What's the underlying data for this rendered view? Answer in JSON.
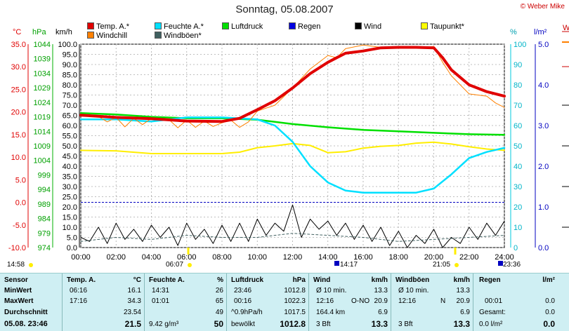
{
  "title": "Sonntag, 05.08.2007",
  "copyright": "© Weber Mike",
  "legend": [
    {
      "label": "Temp. A.*",
      "color": "#e00000"
    },
    {
      "label": "Feuchte A.*",
      "color": "#00e0ff"
    },
    {
      "label": "Luftdruck",
      "color": "#00e000"
    },
    {
      "label": "Regen",
      "color": "#0000e0"
    },
    {
      "label": "Wind",
      "color": "#000000"
    },
    {
      "label": "Taupunkt*",
      "color": "#ffff00"
    },
    {
      "label": "Windchill",
      "color": "#ff8000"
    },
    {
      "label": "Windböen*",
      "color": "#406060"
    }
  ],
  "axis_units": {
    "temp": "°C",
    "pressure": "hPa",
    "wind": "km/h",
    "humidity": "%",
    "rain": "l/m²",
    "cut": "W"
  },
  "sun": {
    "rise_left": "14:58",
    "rise": "06:07",
    "set": "21:05",
    "moon_a": "14:17",
    "moon_b": "23:36"
  },
  "chart_data": {
    "type": "line",
    "x_ticks": [
      "00:00",
      "02:00",
      "04:00",
      "06:00",
      "08:00",
      "10:00",
      "12:00",
      "14:00",
      "16:00",
      "18:00",
      "20:00",
      "22:00",
      "24:00"
    ],
    "axes": {
      "temp": {
        "ticks": [
          "35.0",
          "30.0",
          "25.0",
          "20.0",
          "15.0",
          "10.0",
          "5.0",
          "0.0",
          "-5.0",
          "-10.0"
        ],
        "range": [
          -10,
          35
        ],
        "color": "#e00000"
      },
      "pressure": {
        "ticks": [
          "1044",
          "1039",
          "1034",
          "1029",
          "1024",
          "1019",
          "1014",
          "1009",
          "1004",
          "999",
          "994",
          "989",
          "984",
          "979",
          "974"
        ],
        "range": [
          974,
          1044
        ],
        "color": "#00a000"
      },
      "wind": {
        "ticks": [
          "100.0",
          "95.0",
          "90.0",
          "85.0",
          "80.0",
          "75.0",
          "70.0",
          "65.0",
          "60.0",
          "55.0",
          "50.0",
          "45.0",
          "40.0",
          "35.0",
          "30.0",
          "25.0",
          "20.0",
          "15.0",
          "10.0",
          "5.0",
          "0.0"
        ],
        "range": [
          0,
          100
        ],
        "color": "#000000"
      },
      "humidity": {
        "ticks": [
          "100",
          "90",
          "80",
          "70",
          "60",
          "50",
          "40",
          "30",
          "20",
          "10",
          "0"
        ],
        "range": [
          0,
          100
        ],
        "color": "#00c8dc"
      },
      "rain": {
        "ticks": [
          "5.0",
          "4.0",
          "3.0",
          "2.0",
          "1.0",
          "0.0"
        ],
        "range": [
          0,
          5
        ],
        "color": "#0000c0"
      }
    },
    "series": [
      {
        "name": "Temp. A.*",
        "axis": "temp",
        "x": [
          0,
          2,
          4,
          6,
          8,
          9,
          10,
          11,
          12,
          13,
          14,
          14.5,
          15,
          16,
          17,
          18,
          19,
          20,
          20.5,
          21,
          22,
          23,
          24
        ],
        "values": [
          19.3,
          18.8,
          18.5,
          18.0,
          17.9,
          18.6,
          20.5,
          22.5,
          25.3,
          28.5,
          31.0,
          32.0,
          33.0,
          33.5,
          34.2,
          34.3,
          34.3,
          34.2,
          32.0,
          29.3,
          26.0,
          24.5,
          23.5
        ]
      },
      {
        "name": "Windchill",
        "axis": "temp",
        "x": [
          0,
          1,
          1.5,
          2,
          2.5,
          3,
          3.5,
          4,
          5,
          5.5,
          6,
          6.5,
          7,
          7.5,
          8,
          8.5,
          9,
          9.5,
          10,
          11,
          12,
          13,
          14,
          14.5,
          15,
          16,
          17,
          18,
          19,
          20,
          20.5,
          21,
          22,
          23,
          23.5,
          24
        ],
        "values": [
          19.3,
          19.0,
          17.8,
          18.8,
          16.7,
          18.6,
          17.2,
          18.6,
          18.3,
          16.5,
          18.2,
          16.6,
          18.0,
          16.8,
          17.6,
          18.2,
          16.6,
          17.8,
          20.2,
          21.5,
          25.3,
          29.5,
          32.5,
          32.0,
          34.0,
          34.8,
          34.3,
          34.4,
          34.2,
          34.5,
          31.0,
          28.0,
          24.0,
          23.5,
          22.0,
          21.0
        ]
      },
      {
        "name": "Feuchte A.*",
        "axis": "humidity",
        "x": [
          0,
          2,
          4,
          6,
          8,
          10,
          11,
          12,
          13,
          14,
          15,
          16,
          17,
          18,
          19,
          20,
          21,
          22,
          23,
          24
        ],
        "values": [
          63,
          63,
          62,
          64,
          64,
          63,
          60,
          52,
          40,
          32,
          28,
          27,
          27,
          27,
          27,
          29,
          36,
          44,
          47,
          49
        ]
      },
      {
        "name": "Luftdruck",
        "axis": "pressure",
        "x": [
          0,
          2,
          4,
          6,
          8,
          10,
          12,
          14,
          16,
          18,
          20,
          22,
          24
        ],
        "values": [
          1020.3,
          1019.8,
          1019.0,
          1018.5,
          1018.5,
          1018.0,
          1016.5,
          1015.4,
          1014.5,
          1014.0,
          1013.5,
          1013.0,
          1012.8
        ]
      },
      {
        "name": "Taupunkt*",
        "axis": "temp",
        "x": [
          0,
          2,
          4,
          6,
          8,
          9,
          10,
          11,
          12,
          13,
          14,
          15,
          16,
          17,
          18,
          19,
          20,
          21,
          22,
          23,
          24
        ],
        "values": [
          11.5,
          11.4,
          10.8,
          10.8,
          10.8,
          11.1,
          12.1,
          12.5,
          13.0,
          12.6,
          11.0,
          11.2,
          12.0,
          12.4,
          12.6,
          13.1,
          13.3,
          12.9,
          12.3,
          11.8,
          11.5
        ]
      },
      {
        "name": "Windböen*",
        "axis": "wind",
        "x": [
          0,
          2,
          4,
          6,
          8,
          10,
          12,
          14,
          16,
          18,
          20,
          22,
          24
        ],
        "values": [
          3,
          5,
          4,
          6,
          5,
          5,
          7,
          6,
          5,
          3,
          4,
          5,
          6
        ]
      },
      {
        "name": "Wind",
        "axis": "wind",
        "x": [
          0,
          0.5,
          1,
          1.5,
          2,
          2.5,
          3,
          3.5,
          4,
          4.5,
          5,
          5.5,
          6,
          6.5,
          7,
          7.5,
          8,
          8.5,
          9,
          9.5,
          10,
          10.5,
          11,
          11.5,
          12,
          12.5,
          13,
          13.5,
          14,
          14.5,
          15,
          15.5,
          16,
          16.5,
          17,
          17.5,
          18,
          18.5,
          19,
          19.5,
          20,
          20.5,
          21,
          21.5,
          22,
          22.5,
          23,
          23.5,
          24
        ],
        "values": [
          5,
          3,
          10,
          2,
          12,
          4,
          9,
          3,
          11,
          5,
          10,
          1,
          12,
          4,
          9,
          2,
          11,
          3,
          12,
          3,
          14,
          6,
          12,
          8,
          21,
          5,
          14,
          9,
          13,
          6,
          12,
          4,
          11,
          3,
          10,
          1,
          8,
          0,
          6,
          2,
          9,
          0,
          5,
          2,
          10,
          4,
          12,
          6,
          13
        ]
      }
    ],
    "reference_lines": [
      {
        "axis": "temp",
        "value": 0,
        "color": "#0000c0",
        "style": "dashed"
      }
    ]
  },
  "table": {
    "col1": {
      "r0": "Sensor",
      "r1": "MinWert",
      "r2": "MaxWert",
      "r3": "Durchschnitt",
      "r4": "05.08. 23:46"
    },
    "col2": {
      "h1": "Temp. A.",
      "h2": "°C",
      "min_t": "06:16",
      "min_v": "16.1",
      "max_t": "17:16",
      "max_v": "34.3",
      "avg": "23.54",
      "cur": "21.5"
    },
    "col3": {
      "h1": "Feuchte A.",
      "h2": "%",
      "min_t": "14:31",
      "min_v": "26",
      "max_t": "01:01",
      "max_v": "65",
      "avg": "49",
      "cur_extra": "9.42 g/m³",
      "cur": "50"
    },
    "col4": {
      "h1": "Luftdruck",
      "h2": "hPa",
      "min_t": "23:46",
      "min_v": "1012.8",
      "max_t": "00:16",
      "max_v": "1022.3",
      "avg_extra": "^0.9hPa/h",
      "avg": "1017.5",
      "cur_extra": "bewölkt",
      "cur": "1012.8"
    },
    "col5": {
      "h1": "Wind",
      "h2": "km/h",
      "r1a": "Ø 10 min.",
      "r1b": "13.3",
      "r2a": "12:16",
      "r2b": "O-NO",
      "r2c": "20.9",
      "r3a": "164.4 km",
      "r3b": "6.9",
      "r4a": "3 Bft",
      "r4b": "13.3"
    },
    "col6": {
      "h1": "Windböen",
      "h2": "km/h",
      "r1a": "Ø 10 min.",
      "r1b": "13.3",
      "r2a": "12:16",
      "r2b": "N",
      "r2c": "20.9",
      "r3b": "6.9",
      "r4a": "3 Bft",
      "r4b": "13.3"
    },
    "col7": {
      "h1": "Regen",
      "h2": "l/m²",
      "r2a": "00:01",
      "r2b": "0.0",
      "r3a": "Gesamt:",
      "r3b": "0.0",
      "r4a": "0.0 l/m²",
      "r4b": "0.0"
    }
  }
}
